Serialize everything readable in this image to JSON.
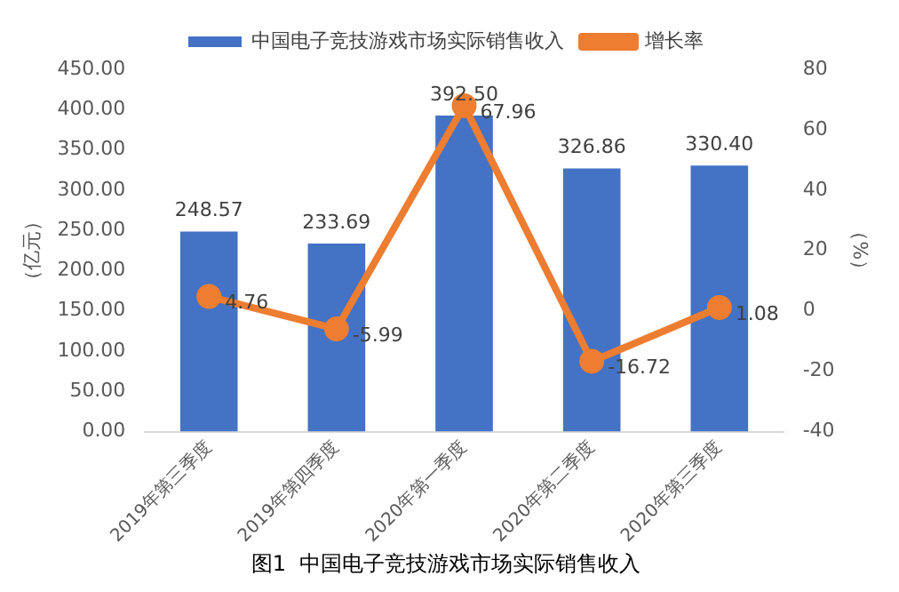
{
  "chart_data": {
    "type": "bar",
    "title": "图1  中国电子竞技游戏市场实际销售收入",
    "ylabel": "（亿元）",
    "y2label": "（%）",
    "categories": [
      "2019年第三季度",
      "2019年第四季度",
      "2020年第一季度",
      "2020年第二季度",
      "2020年第三季度"
    ],
    "series": [
      {
        "name": "中国电子竞技游戏市场实际销售收入",
        "color": "#4472c4",
        "values": [
          248.57,
          233.69,
          392.5,
          326.86,
          330.4
        ],
        "value_labels": [
          "248.57",
          "233.69",
          "392.50",
          "326.86",
          "330.40"
        ]
      },
      {
        "name": "增长率",
        "type": "line",
        "axis": "y2",
        "color": "#ed7d31",
        "values": [
          4.76,
          -5.99,
          67.96,
          -16.72,
          1.08
        ],
        "value_labels": [
          "4.76",
          "-5.99",
          "67.96",
          "-16.72",
          "1.08"
        ]
      }
    ],
    "ylim": [
      0,
      450
    ],
    "yticks": [
      {
        "value": 0,
        "label": "0.00"
      },
      {
        "value": 50,
        "label": "50.00"
      },
      {
        "value": 100,
        "label": "100.00"
      },
      {
        "value": 150,
        "label": "150.00"
      },
      {
        "value": 200,
        "label": "200.00"
      },
      {
        "value": 250,
        "label": "250.00"
      },
      {
        "value": 300,
        "label": "300.00"
      },
      {
        "value": 350,
        "label": "350.00"
      },
      {
        "value": 400,
        "label": "400.00"
      },
      {
        "value": 450,
        "label": "450.00"
      }
    ],
    "y2lim": [
      -40,
      80
    ],
    "y2ticks": [
      -40,
      -20,
      0,
      20,
      40,
      60,
      80
    ],
    "grid": false,
    "legend": "top",
    "marker": "circle",
    "line_style": "solid"
  }
}
